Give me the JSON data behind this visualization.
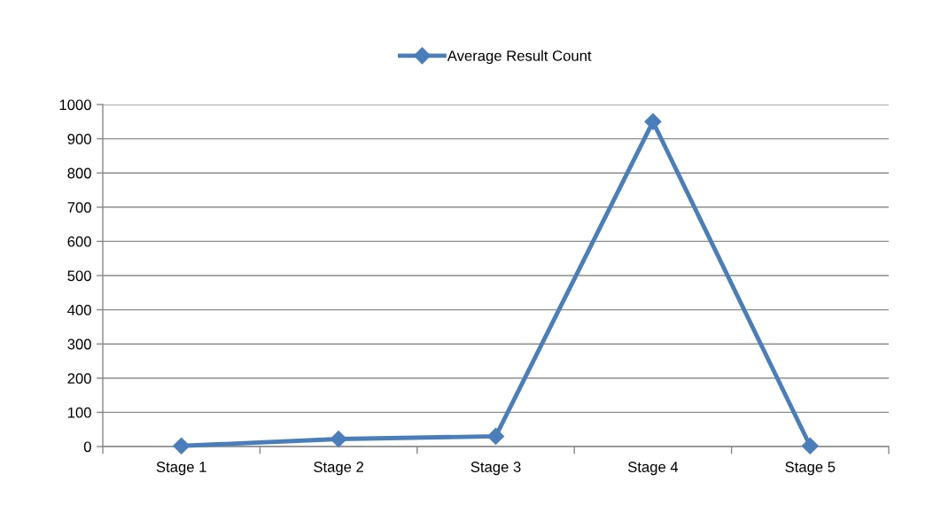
{
  "chart_data": {
    "type": "line",
    "categories": [
      "Stage 1",
      "Stage 2",
      "Stage 3",
      "Stage 4",
      "Stage 5"
    ],
    "series": [
      {
        "name": "Average Result Count",
        "color": "#4a7ebb",
        "values": [
          2,
          22,
          30,
          950,
          2
        ]
      }
    ],
    "ylim": [
      0,
      1000
    ],
    "yticks": [
      0,
      100,
      200,
      300,
      400,
      500,
      600,
      700,
      800,
      900,
      1000
    ],
    "grid": "y",
    "legend": "top",
    "marker": "diamond",
    "line_style": "solid"
  }
}
